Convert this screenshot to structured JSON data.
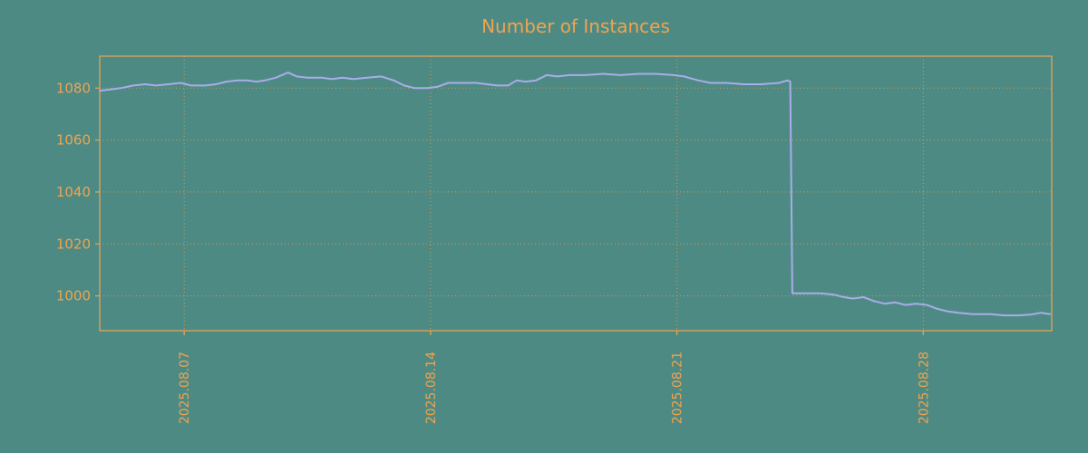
{
  "chart_data": {
    "type": "line",
    "title": "Number of Instances",
    "xlabel": "",
    "ylabel": "",
    "legend": "none",
    "grid": true,
    "x_tick_labels": [
      "2025.08.07",
      "2025.08.14",
      "2025.08.21",
      "2025.08.28"
    ],
    "x_tick_days": [
      7,
      14,
      21,
      28
    ],
    "x_domain": [
      4.6,
      31.65
    ],
    "y_ticks": [
      1000,
      1020,
      1040,
      1060,
      1080
    ],
    "y_domain": [
      986.6,
      1092.3
    ],
    "colors": {
      "background": "#4e8a84",
      "accent": "#efa44f",
      "line": "#a8ade8"
    },
    "series": [
      {
        "name": "instances",
        "points": [
          [
            4.61,
            1079
          ],
          [
            4.9,
            1079.5
          ],
          [
            5.2,
            1080
          ],
          [
            5.55,
            1081
          ],
          [
            5.9,
            1081.5
          ],
          [
            6.2,
            1081
          ],
          [
            6.55,
            1081.5
          ],
          [
            6.9,
            1082
          ],
          [
            7.2,
            1081
          ],
          [
            7.6,
            1081
          ],
          [
            7.9,
            1081.5
          ],
          [
            8.2,
            1082.5
          ],
          [
            8.5,
            1083
          ],
          [
            8.8,
            1083
          ],
          [
            9.05,
            1082.5
          ],
          [
            9.3,
            1083
          ],
          [
            9.6,
            1084
          ],
          [
            9.95,
            1086
          ],
          [
            10.2,
            1084.5
          ],
          [
            10.5,
            1084
          ],
          [
            10.9,
            1084
          ],
          [
            11.2,
            1083.5
          ],
          [
            11.5,
            1084
          ],
          [
            11.8,
            1083.5
          ],
          [
            12.2,
            1084
          ],
          [
            12.6,
            1084.5
          ],
          [
            12.95,
            1083
          ],
          [
            13.25,
            1081
          ],
          [
            13.55,
            1080
          ],
          [
            13.9,
            1080
          ],
          [
            14.2,
            1080.5
          ],
          [
            14.5,
            1082
          ],
          [
            14.9,
            1082
          ],
          [
            15.3,
            1082
          ],
          [
            15.6,
            1081.5
          ],
          [
            15.9,
            1081
          ],
          [
            16.2,
            1081
          ],
          [
            16.45,
            1083
          ],
          [
            16.7,
            1082.5
          ],
          [
            17.0,
            1083
          ],
          [
            17.3,
            1085
          ],
          [
            17.6,
            1084.5
          ],
          [
            17.95,
            1085
          ],
          [
            18.4,
            1085
          ],
          [
            18.9,
            1085.5
          ],
          [
            19.4,
            1085
          ],
          [
            19.9,
            1085.5
          ],
          [
            20.4,
            1085.5
          ],
          [
            20.9,
            1085
          ],
          [
            21.2,
            1084.5
          ],
          [
            21.6,
            1083
          ],
          [
            21.95,
            1082
          ],
          [
            22.4,
            1082
          ],
          [
            22.9,
            1081.5
          ],
          [
            23.4,
            1081.5
          ],
          [
            23.9,
            1082
          ],
          [
            24.15,
            1083
          ],
          [
            24.22,
            1082.5
          ],
          [
            24.28,
            1001
          ],
          [
            24.7,
            1001
          ],
          [
            25.1,
            1001
          ],
          [
            25.45,
            1000.5
          ],
          [
            25.75,
            999.5
          ],
          [
            26.0,
            999
          ],
          [
            26.3,
            999.5
          ],
          [
            26.6,
            998
          ],
          [
            26.9,
            997
          ],
          [
            27.2,
            997.5
          ],
          [
            27.5,
            996.5
          ],
          [
            27.8,
            997
          ],
          [
            28.1,
            996.5
          ],
          [
            28.4,
            995
          ],
          [
            28.7,
            994
          ],
          [
            29.0,
            993.5
          ],
          [
            29.4,
            993
          ],
          [
            29.9,
            993
          ],
          [
            30.3,
            992.5
          ],
          [
            30.7,
            992.5
          ],
          [
            31.05,
            992.8
          ],
          [
            31.35,
            993.5
          ],
          [
            31.6,
            993
          ]
        ]
      }
    ]
  }
}
